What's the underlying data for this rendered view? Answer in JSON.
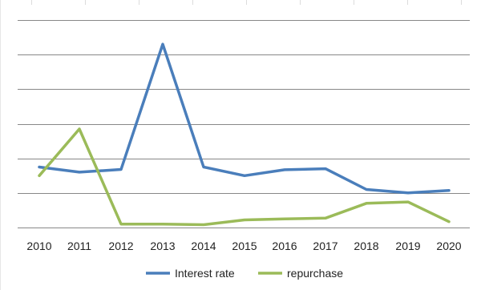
{
  "chart_data": {
    "type": "line",
    "categories": [
      "2010",
      "2011",
      "2012",
      "2013",
      "2014",
      "2015",
      "2016",
      "2017",
      "2018",
      "2019",
      "2020"
    ],
    "ylim": [
      0,
      6
    ],
    "grid": true,
    "legend_position": "bottom",
    "series": [
      {
        "name": "Interest rate",
        "color": "#4a7ebb",
        "values": [
          1.75,
          1.6,
          1.68,
          5.3,
          1.75,
          1.5,
          1.67,
          1.7,
          1.1,
          1.0,
          1.07
        ]
      },
      {
        "name": "repurchase",
        "color": "#9bbb59",
        "values": [
          1.5,
          2.85,
          0.1,
          0.1,
          0.08,
          0.22,
          0.25,
          0.27,
          0.7,
          0.74,
          0.17
        ]
      }
    ]
  }
}
